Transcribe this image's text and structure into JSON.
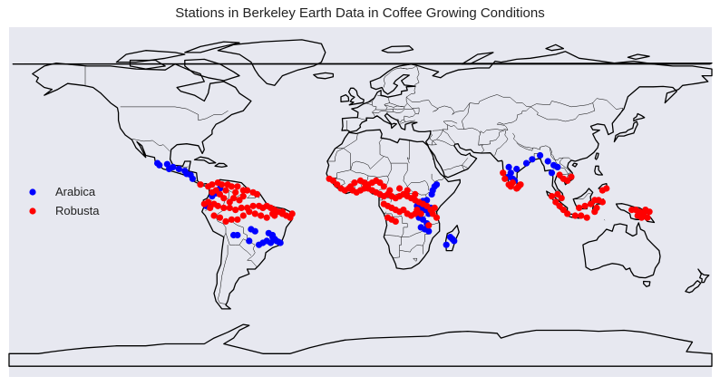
{
  "title": "Stations in Berkeley Earth Data in Coffee Growing Conditions",
  "colors": {
    "background": "#e7e8f0",
    "arabica": "#0000ff",
    "robusta": "#ff0000",
    "coastline": "#000000"
  },
  "chart_data": {
    "type": "scatter",
    "title": "Stations in Berkeley Earth Data in Coffee Growing Conditions",
    "projection": "plate-carree",
    "xlim": [
      -180,
      180
    ],
    "ylim": [
      -90,
      90
    ],
    "legend_position": "center-left",
    "series": [
      {
        "name": "Arabica",
        "color": "#0000ff",
        "points": [
          [
            -104,
            20
          ],
          [
            -103,
            19
          ],
          [
            -99,
            19.5
          ],
          [
            -98,
            17
          ],
          [
            -96,
            18
          ],
          [
            -93,
            17
          ],
          [
            -90,
            16
          ],
          [
            -89,
            14.5
          ],
          [
            -87,
            14
          ],
          [
            -86,
            12
          ],
          [
            -75,
            5
          ],
          [
            -76,
            3
          ],
          [
            -74,
            4.5
          ],
          [
            -72,
            7
          ],
          [
            -78,
            -1
          ],
          [
            -79,
            -2
          ],
          [
            -56,
            -14
          ],
          [
            -54,
            -15
          ],
          [
            -47,
            -16
          ],
          [
            -45,
            -18
          ],
          [
            -44,
            -19
          ],
          [
            -43,
            -20
          ],
          [
            -42,
            -20.5
          ],
          [
            -41,
            -21
          ],
          [
            -46,
            -21
          ],
          [
            -48,
            -20
          ],
          [
            -50,
            -21
          ],
          [
            -52,
            -22
          ],
          [
            -45,
            -17
          ],
          [
            -63,
            -17
          ],
          [
            -65,
            -17
          ],
          [
            -57,
            -20
          ],
          [
            38,
            8
          ],
          [
            37,
            6
          ],
          [
            39,
            9
          ],
          [
            36.5,
            4
          ],
          [
            34,
            1
          ],
          [
            32,
            0.5
          ],
          [
            30,
            -1
          ],
          [
            29.5,
            -3
          ],
          [
            31,
            -3
          ],
          [
            33,
            -4
          ],
          [
            35,
            -6
          ],
          [
            36,
            -3
          ],
          [
            29,
            -2
          ],
          [
            30,
            -8
          ],
          [
            32,
            -9
          ],
          [
            34,
            -11
          ],
          [
            33,
            -14
          ],
          [
            35,
            -15
          ],
          [
            31,
            -13
          ],
          [
            46,
            -18
          ],
          [
            47,
            -19
          ],
          [
            48,
            -20
          ],
          [
            44,
            -22
          ],
          [
            76,
            18
          ],
          [
            77,
            15
          ],
          [
            78,
            12
          ],
          [
            79,
            11
          ],
          [
            76,
            13
          ],
          [
            80,
            17
          ],
          [
            85,
            20
          ],
          [
            88,
            22
          ],
          [
            92,
            24
          ],
          [
            96,
            21
          ],
          [
            99,
            19
          ],
          [
            101,
            18
          ],
          [
            98,
            15
          ]
        ]
      },
      {
        "name": "Robusta",
        "color": "#ff0000",
        "points": [
          [
            -82,
            9
          ],
          [
            -78,
            8
          ],
          [
            -76,
            9
          ],
          [
            -73,
            10
          ],
          [
            -71,
            9
          ],
          [
            -68,
            9
          ],
          [
            -66,
            8
          ],
          [
            -63,
            8
          ],
          [
            -60,
            6
          ],
          [
            -58,
            6
          ],
          [
            -55,
            5
          ],
          [
            -53,
            4
          ],
          [
            -80,
            -1
          ],
          [
            -78,
            0
          ],
          [
            -77,
            -3
          ],
          [
            -75,
            -1
          ],
          [
            -73,
            -2
          ],
          [
            -70,
            -3
          ],
          [
            -67,
            -3
          ],
          [
            -64,
            -4
          ],
          [
            -61,
            -3
          ],
          [
            -58,
            -3
          ],
          [
            -55,
            -2
          ],
          [
            -52,
            -2
          ],
          [
            -50,
            -3
          ],
          [
            -48,
            -2
          ],
          [
            -46,
            -3
          ],
          [
            -44,
            -4
          ],
          [
            -42,
            -5
          ],
          [
            -40,
            -6
          ],
          [
            -38,
            -7
          ],
          [
            -36,
            -8
          ],
          [
            -35,
            -6
          ],
          [
            -60,
            -7
          ],
          [
            -63,
            -9
          ],
          [
            -66,
            -9
          ],
          [
            -69,
            -10
          ],
          [
            -72,
            -8
          ],
          [
            -75,
            -7
          ],
          [
            -57,
            -5
          ],
          [
            -54,
            -6
          ],
          [
            -51,
            -7
          ],
          [
            -48,
            -8
          ],
          [
            -45,
            -6
          ],
          [
            -70,
            2
          ],
          [
            -65,
            2
          ],
          [
            -62,
            1
          ],
          [
            -60,
            3
          ],
          [
            -67,
            0
          ],
          [
            -72,
            4
          ],
          [
            -76,
            5
          ],
          [
            -74,
            6
          ],
          [
            -69,
            6
          ],
          [
            -64,
            5
          ],
          [
            -40,
            -5
          ],
          [
            -44,
            -7
          ],
          [
            -16,
            12
          ],
          [
            -14,
            11
          ],
          [
            -12,
            9
          ],
          [
            -10,
            7
          ],
          [
            -8,
            6
          ],
          [
            -6,
            7
          ],
          [
            -4,
            6
          ],
          [
            -2,
            5
          ],
          [
            0,
            6
          ],
          [
            2,
            7
          ],
          [
            4,
            7
          ],
          [
            6,
            6
          ],
          [
            8,
            5
          ],
          [
            10,
            4
          ],
          [
            12,
            3
          ],
          [
            14,
            4
          ],
          [
            16,
            3
          ],
          [
            18,
            2
          ],
          [
            20,
            3
          ],
          [
            22,
            4
          ],
          [
            24,
            3
          ],
          [
            26,
            2
          ],
          [
            28,
            1
          ],
          [
            30,
            0
          ],
          [
            32,
            -1
          ],
          [
            34,
            -2
          ],
          [
            12,
            -1
          ],
          [
            14,
            -2
          ],
          [
            16,
            -3
          ],
          [
            18,
            -4
          ],
          [
            20,
            -5
          ],
          [
            22,
            -4
          ],
          [
            24,
            -6
          ],
          [
            26,
            -7
          ],
          [
            28,
            -6
          ],
          [
            14,
            -8
          ],
          [
            16,
            -9
          ],
          [
            18,
            -10
          ],
          [
            4,
            9
          ],
          [
            6,
            10
          ],
          [
            8,
            11
          ],
          [
            10,
            10
          ],
          [
            12,
            8
          ],
          [
            -5,
            8
          ],
          [
            -3,
            10
          ],
          [
            0,
            11
          ],
          [
            2,
            10
          ],
          [
            15,
            6
          ],
          [
            20,
            7
          ],
          [
            24,
            6
          ],
          [
            28,
            4
          ],
          [
            36,
            -4
          ],
          [
            38,
            -3
          ],
          [
            37,
            -6
          ],
          [
            39,
            -8
          ],
          [
            35,
            -12
          ],
          [
            29,
            -4
          ],
          [
            31,
            -6
          ],
          [
            73,
            15
          ],
          [
            74,
            12
          ],
          [
            76,
            9
          ],
          [
            77,
            8
          ],
          [
            78,
            10
          ],
          [
            80,
            7
          ],
          [
            81,
            8
          ],
          [
            82,
            9
          ],
          [
            102,
            14
          ],
          [
            104,
            12
          ],
          [
            106,
            11
          ],
          [
            108,
            13
          ],
          [
            101,
            4
          ],
          [
            103,
            2
          ],
          [
            98,
            3
          ],
          [
            100,
            0
          ],
          [
            102,
            -2
          ],
          [
            104,
            -4
          ],
          [
            106,
            -6
          ],
          [
            110,
            -7
          ],
          [
            113,
            -7
          ],
          [
            116,
            -8
          ],
          [
            112,
            -3
          ],
          [
            115,
            -2
          ],
          [
            118,
            -1
          ],
          [
            120,
            1
          ],
          [
            122,
            1
          ],
          [
            124,
            0
          ],
          [
            121,
            -3
          ],
          [
            120,
            -5
          ],
          [
            124,
            6
          ],
          [
            126,
            7
          ],
          [
            139,
            -4
          ],
          [
            141,
            -4
          ],
          [
            143,
            -5
          ],
          [
            145,
            -6
          ],
          [
            147,
            -8
          ],
          [
            148,
            -5
          ],
          [
            146,
            -4
          ],
          [
            142,
            -7
          ],
          [
            144,
            -8
          ]
        ]
      }
    ]
  }
}
